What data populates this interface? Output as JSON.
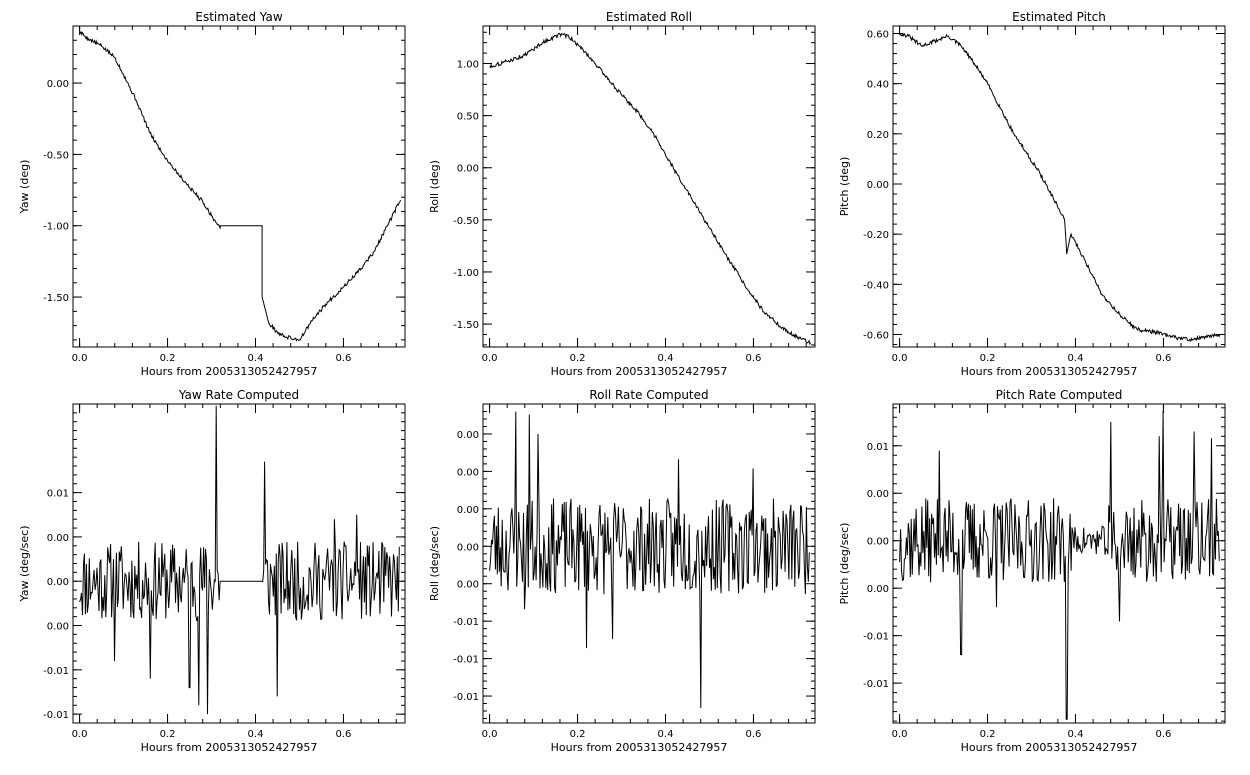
{
  "chart_data": [
    {
      "type": "line",
      "title": "Estimated Yaw",
      "xlabel": "Hours from 2005313052427957",
      "ylabel": "Yaw (deg)",
      "xlim": [
        -0.015,
        0.74
      ],
      "ylim": [
        -1.85,
        0.4
      ],
      "xticks": [
        0.0,
        0.2,
        0.4,
        0.6
      ],
      "xtick_labels": [
        "0.0",
        "0.2",
        "0.4",
        "0.6"
      ],
      "yticks": [
        0.0,
        -0.5,
        -1.0,
        -1.5
      ],
      "ytick_labels": [
        "0.00",
        "-0.50",
        "-1.00",
        "-1.50"
      ],
      "series": [
        {
          "x": [
            0.0,
            0.02,
            0.05,
            0.08,
            0.1,
            0.13,
            0.16,
            0.19,
            0.22,
            0.25,
            0.28,
            0.3,
            0.32,
            0.32,
            0.415,
            0.415,
            0.43,
            0.45,
            0.47,
            0.5,
            0.53,
            0.56,
            0.6,
            0.64,
            0.67,
            0.7,
            0.73
          ],
          "y": [
            0.36,
            0.31,
            0.26,
            0.18,
            0.06,
            -0.13,
            -0.35,
            -0.5,
            -0.62,
            -0.73,
            -0.83,
            -0.93,
            -1.02,
            -1.0,
            -1.0,
            -1.5,
            -1.68,
            -1.75,
            -1.78,
            -1.8,
            -1.66,
            -1.55,
            -1.43,
            -1.3,
            -1.18,
            -1.0,
            -0.82
          ]
        }
      ]
    },
    {
      "type": "line",
      "title": "Estimated Roll",
      "xlabel": "Hours from 2005313052427957",
      "ylabel": "Roll (deg)",
      "xlim": [
        -0.015,
        0.74
      ],
      "ylim": [
        -1.72,
        1.36
      ],
      "xticks": [
        0.0,
        0.2,
        0.4,
        0.6
      ],
      "xtick_labels": [
        "0.0",
        "0.2",
        "0.4",
        "0.6"
      ],
      "yticks": [
        1.0,
        0.5,
        0.0,
        -0.5,
        -1.0,
        -1.5
      ],
      "ytick_labels": [
        "1.00",
        "0.50",
        "0.00",
        "-0.50",
        "-1.00",
        "-1.50"
      ],
      "series": [
        {
          "x": [
            0.0,
            0.04,
            0.08,
            0.12,
            0.16,
            0.18,
            0.22,
            0.26,
            0.3,
            0.34,
            0.38,
            0.42,
            0.46,
            0.5,
            0.54,
            0.58,
            0.62,
            0.66,
            0.7,
            0.73
          ],
          "y": [
            0.97,
            1.02,
            1.08,
            1.2,
            1.28,
            1.26,
            1.1,
            0.9,
            0.7,
            0.52,
            0.28,
            -0.02,
            -0.3,
            -0.58,
            -0.86,
            -1.12,
            -1.36,
            -1.52,
            -1.63,
            -1.68
          ]
        }
      ]
    },
    {
      "type": "line",
      "title": "Estimated Pitch",
      "xlabel": "Hours from 2005313052427957",
      "ylabel": "Pitch (deg)",
      "xlim": [
        -0.015,
        0.74
      ],
      "ylim": [
        -0.65,
        0.63
      ],
      "xticks": [
        0.0,
        0.2,
        0.4,
        0.6
      ],
      "xtick_labels": [
        "0.0",
        "0.2",
        "0.4",
        "0.6"
      ],
      "yticks": [
        0.6,
        0.4,
        0.2,
        0.0,
        -0.2,
        -0.4,
        -0.6
      ],
      "ytick_labels": [
        "0.60",
        "0.40",
        "0.20",
        "0.00",
        "-0.20",
        "-0.40",
        "-0.60"
      ],
      "series": [
        {
          "x": [
            0.0,
            0.02,
            0.05,
            0.08,
            0.11,
            0.14,
            0.17,
            0.2,
            0.23,
            0.26,
            0.29,
            0.32,
            0.35,
            0.375,
            0.38,
            0.39,
            0.42,
            0.46,
            0.5,
            0.54,
            0.58,
            0.62,
            0.66,
            0.7,
            0.73
          ],
          "y": [
            0.6,
            0.59,
            0.55,
            0.57,
            0.59,
            0.55,
            0.48,
            0.4,
            0.3,
            0.2,
            0.12,
            0.04,
            -0.06,
            -0.14,
            -0.28,
            -0.2,
            -0.3,
            -0.44,
            -0.52,
            -0.58,
            -0.59,
            -0.61,
            -0.62,
            -0.61,
            -0.6
          ]
        }
      ]
    },
    {
      "type": "line",
      "title": "Yaw Rate Computed",
      "xlabel": "Hours from 2005313052427957",
      "ylabel": "Yaw (deg/sec)",
      "xlim": [
        -0.015,
        0.74
      ],
      "ylim": [
        -0.016,
        0.02
      ],
      "xticks": [
        0.0,
        0.2,
        0.4,
        0.6
      ],
      "xtick_labels": [
        "0.0",
        "0.2",
        "0.4",
        "0.6"
      ],
      "yticks": [
        0.01,
        0.005,
        0.0,
        -0.005,
        -0.01,
        -0.015
      ],
      "ytick_labels": [
        "0.01",
        "0.00",
        "0.00",
        "0.00",
        "-0.01",
        "-0.01"
      ],
      "gap_x": [
        0.32,
        0.415
      ],
      "series": [
        {
          "x": [
            0.0,
            0.727
          ],
          "y": [
            0.0,
            0.0
          ],
          "amplitude": 0.0045,
          "spikes": [
            [
              0.31,
              0.0198
            ],
            [
              0.27,
              -0.014
            ],
            [
              0.29,
              -0.015
            ],
            [
              0.25,
              -0.012
            ],
            [
              0.08,
              -0.009
            ],
            [
              0.16,
              -0.011
            ],
            [
              0.42,
              0.0135
            ],
            [
              0.45,
              -0.013
            ],
            [
              0.58,
              0.007
            ],
            [
              0.63,
              0.0075
            ]
          ],
          "seed": 11
        }
      ]
    },
    {
      "type": "line",
      "title": "Roll Rate Computed",
      "xlabel": "Hours from 2005313052427957",
      "ylabel": "Roll (deg/sec)",
      "xlim": [
        -0.015,
        0.74
      ],
      "ylim": [
        -0.0118,
        0.0095
      ],
      "xticks": [
        0.0,
        0.2,
        0.4,
        0.6
      ],
      "xtick_labels": [
        "0.0",
        "0.2",
        "0.4",
        "0.6"
      ],
      "yticks": [
        0.0075,
        0.005,
        0.0025,
        0.0,
        -0.0025,
        -0.005,
        -0.0075,
        -0.01
      ],
      "ytick_labels": [
        "0.00",
        "0.00",
        "0.00",
        "0.00",
        "0.00",
        "-0.01",
        "-0.01",
        "-0.01"
      ],
      "series": [
        {
          "x": [
            0.0,
            0.727
          ],
          "y": [
            0.0,
            0.0
          ],
          "amplitude": 0.0032,
          "spikes": [
            [
              0.06,
              0.009
            ],
            [
              0.09,
              0.0088
            ],
            [
              0.11,
              0.0075
            ],
            [
              0.08,
              -0.0042
            ],
            [
              0.22,
              -0.0068
            ],
            [
              0.48,
              -0.0108
            ],
            [
              0.43,
              0.0058
            ],
            [
              0.6,
              0.0052
            ],
            [
              0.28,
              -0.0062
            ]
          ],
          "seed": 23
        }
      ]
    },
    {
      "type": "line",
      "title": "Pitch Rate Computed",
      "xlabel": "Hours from 2005313052427957",
      "ylabel": "Pitch (deg/sec)",
      "xlim": [
        -0.015,
        0.74
      ],
      "ylim": [
        -0.0192,
        0.0144
      ],
      "xticks": [
        0.0,
        0.2,
        0.4,
        0.6
      ],
      "xtick_labels": [
        "0.0",
        "0.2",
        "0.4",
        "0.6"
      ],
      "yticks": [
        0.01,
        0.005,
        0.0,
        -0.005,
        -0.01,
        -0.015
      ],
      "ytick_labels": [
        "0.01",
        "0.00",
        "0.00",
        "0.00",
        "-0.01",
        "-0.01"
      ],
      "quiet_x": [
        0.39,
        0.47
      ],
      "series": [
        {
          "x": [
            0.0,
            0.727
          ],
          "y": [
            0.0,
            0.0
          ],
          "amplitude": 0.0045,
          "spikes": [
            [
              0.38,
              -0.0188
            ],
            [
              0.48,
              0.0125
            ],
            [
              0.6,
              0.0137
            ],
            [
              0.59,
              0.011
            ],
            [
              0.67,
              0.0115
            ],
            [
              0.71,
              0.0108
            ],
            [
              0.14,
              -0.012
            ],
            [
              0.09,
              0.0095
            ],
            [
              0.5,
              -0.0085
            ],
            [
              0.22,
              -0.007
            ]
          ],
          "seed": 37
        }
      ]
    }
  ]
}
